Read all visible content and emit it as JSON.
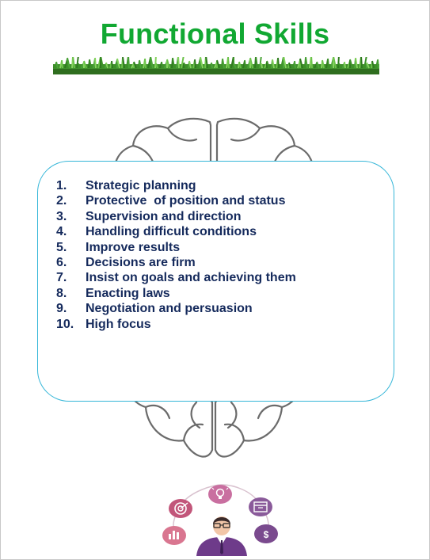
{
  "title": "Functional Skills",
  "colors": {
    "title": "#11a832",
    "text": "#152a5c",
    "card_border": "#35b6d8",
    "grass": "#3e8e2a",
    "brain_outline": "#6b6b6b",
    "icon_pink": "#c2567a",
    "icon_purple": "#7a4a8e"
  },
  "skills": [
    {
      "num": "1.",
      "text": "Strategic planning"
    },
    {
      "num": "2.",
      "text": "Protective  of position and status"
    },
    {
      "num": "3.",
      "text": "Supervision and direction"
    },
    {
      "num": "4.",
      "text": "Handling difficult conditions"
    },
    {
      "num": "5.",
      "text": "Improve results"
    },
    {
      "num": "6.",
      "text": "Decisions are firm"
    },
    {
      "num": "7.",
      "text": "Insist on goals and achieving them"
    },
    {
      "num": "8.",
      "text": "Enacting laws"
    },
    {
      "num": "9.",
      "text": "Negotiation and persuasion"
    },
    {
      "num": "10.",
      "text": "High focus"
    }
  ],
  "footer_icons": [
    "target-icon",
    "lightbulb-icon",
    "calendar-icon",
    "chart-icon",
    "dollar-icon",
    "businessman-icon"
  ]
}
